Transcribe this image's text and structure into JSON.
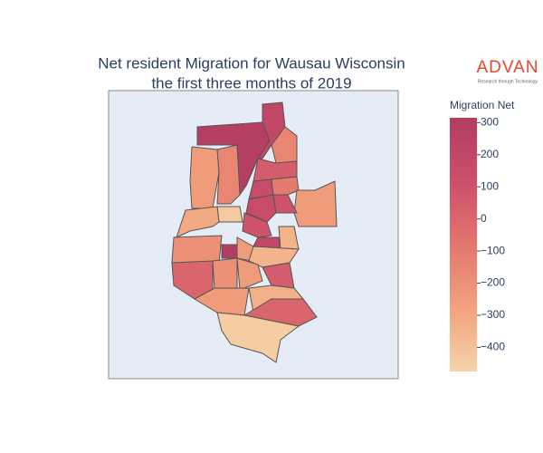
{
  "chart_data": {
    "type": "choropleth",
    "title": [
      "Net resident Migration for Wausau Wisconsin",
      "the first three months of 2019"
    ],
    "colorbar_title": "Migration Net",
    "colorscale": [
      "#f6d3a8",
      "#f2a27c",
      "#e3766e",
      "#cc4f6b",
      "#b13d62"
    ],
    "clim": [
      -475,
      315
    ],
    "cticks": [
      300,
      200,
      100,
      0,
      {
        "value": -100,
        "label": "−100"
      },
      {
        "value": -200,
        "label": "−200"
      },
      {
        "value": -300,
        "label": "−300"
      },
      {
        "value": -400,
        "label": "−400"
      }
    ],
    "values": [
      290,
      200,
      -250,
      -150,
      -150,
      50,
      150,
      -100,
      -250,
      150,
      100,
      -440,
      -300,
      100,
      200,
      -350,
      -200,
      310,
      -250,
      -350,
      0,
      -200,
      -250,
      50,
      -250,
      -330,
      0,
      -450
    ]
  },
  "logo": {
    "name": "ADVAN",
    "tagline": "Research through Technology"
  }
}
